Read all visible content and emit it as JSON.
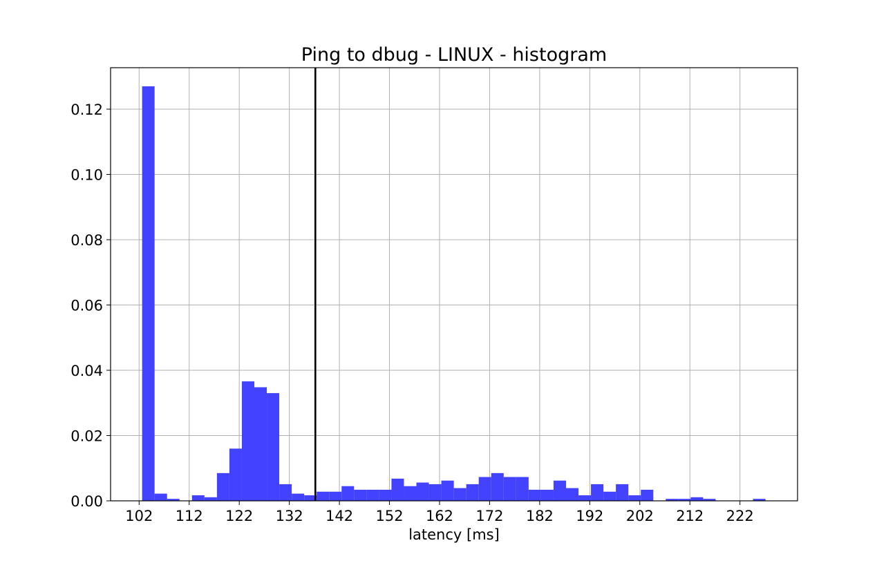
{
  "chart_data": {
    "type": "bar",
    "title": "Ping to dbug - LINUX - histogram",
    "xlabel": "latency [ms]",
    "ylabel": "",
    "xlim": [
      96.3,
      233.5
    ],
    "ylim": [
      0,
      0.1327
    ],
    "grid": true,
    "xticks": [
      102,
      112,
      122,
      132,
      142,
      152,
      162,
      172,
      182,
      192,
      202,
      212,
      222
    ],
    "yticks": [
      0.0,
      0.02,
      0.04,
      0.06,
      0.08,
      0.1,
      0.12
    ],
    "ytick_labels": [
      "0.00",
      "0.02",
      "0.04",
      "0.06",
      "0.08",
      "0.10",
      "0.12"
    ],
    "bin_start": 102.6,
    "bin_width": 2.49,
    "values": [
      0.127,
      0.0022,
      0.0006,
      0,
      0.0017,
      0.0011,
      0.0085,
      0.016,
      0.0366,
      0.0348,
      0.033,
      0.0051,
      0.0022,
      0.0017,
      0.0028,
      0.0028,
      0.0045,
      0.0034,
      0.0034,
      0.0034,
      0.0068,
      0.0045,
      0.0056,
      0.0051,
      0.0062,
      0.0039,
      0.0051,
      0.0073,
      0.0085,
      0.0073,
      0.0073,
      0.0034,
      0.0034,
      0.0062,
      0.0039,
      0.0017,
      0.0051,
      0.0028,
      0.0051,
      0.0017,
      0.0034,
      0,
      0.0006,
      0.0006,
      0.0011,
      0.0006,
      0,
      0,
      0,
      0.0006
    ],
    "bar_color": "#4242ff",
    "vline": {
      "x": 137.2,
      "color": "#000000"
    }
  }
}
